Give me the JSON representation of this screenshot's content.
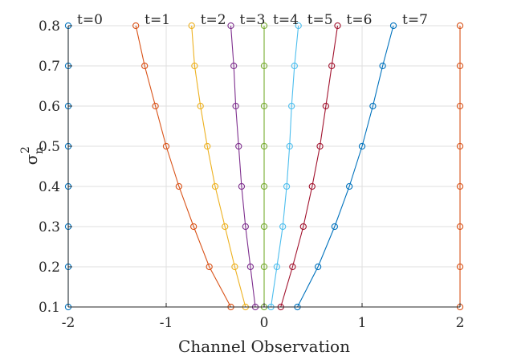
{
  "chart_data": {
    "type": "line",
    "title": "",
    "xlabel": "Channel Observation",
    "ylabel": "σ",
    "ylabel_sub": "n",
    "ylabel_sup": "2",
    "xlim": [
      -2,
      2
    ],
    "ylim": [
      0.1,
      0.8
    ],
    "xticks": [
      "-2",
      "-1",
      "0",
      "1",
      "2"
    ],
    "yticks": [
      "0.1",
      "0.2",
      "0.3",
      "0.4",
      "0.5",
      "0.6",
      "0.7",
      "0.8"
    ],
    "grid": true,
    "y": [
      0.1,
      0.2,
      0.3,
      0.4,
      0.5,
      0.6,
      0.7,
      0.8
    ],
    "series": [
      {
        "name": "t=0",
        "color": "#0072BD",
        "x": [
          -2,
          -2,
          -2,
          -2,
          -2,
          -2,
          -2,
          -2
        ]
      },
      {
        "name": "t=1",
        "color": "#D95319",
        "x": [
          -0.34,
          -0.56,
          -0.72,
          -0.87,
          -1.0,
          -1.11,
          -1.22,
          -1.31
        ]
      },
      {
        "name": "t=2",
        "color": "#EDB120",
        "x": [
          -0.19,
          -0.3,
          -0.4,
          -0.5,
          -0.58,
          -0.65,
          -0.71,
          -0.74
        ]
      },
      {
        "name": "t=3",
        "color": "#7E2F8E",
        "x": [
          -0.09,
          -0.14,
          -0.19,
          -0.23,
          -0.26,
          -0.29,
          -0.31,
          -0.34
        ]
      },
      {
        "name": "t=4",
        "color": "#77AC30",
        "x": [
          0,
          0,
          0,
          0,
          0,
          0,
          0,
          0
        ]
      },
      {
        "name": "t=5",
        "color": "#4DBEEE",
        "x": [
          0.07,
          0.13,
          0.19,
          0.23,
          0.26,
          0.28,
          0.31,
          0.35
        ]
      },
      {
        "name": "t=6",
        "color": "#A2142F",
        "x": [
          0.17,
          0.29,
          0.4,
          0.49,
          0.57,
          0.63,
          0.69,
          0.75
        ]
      },
      {
        "name": "t=7",
        "color": "#0072BD",
        "x": [
          0.34,
          0.55,
          0.72,
          0.87,
          1.0,
          1.11,
          1.21,
          1.32
        ]
      },
      {
        "name": "",
        "color": "#D95319",
        "x": [
          2,
          2,
          2,
          2,
          2,
          2,
          2,
          2
        ]
      }
    ]
  }
}
